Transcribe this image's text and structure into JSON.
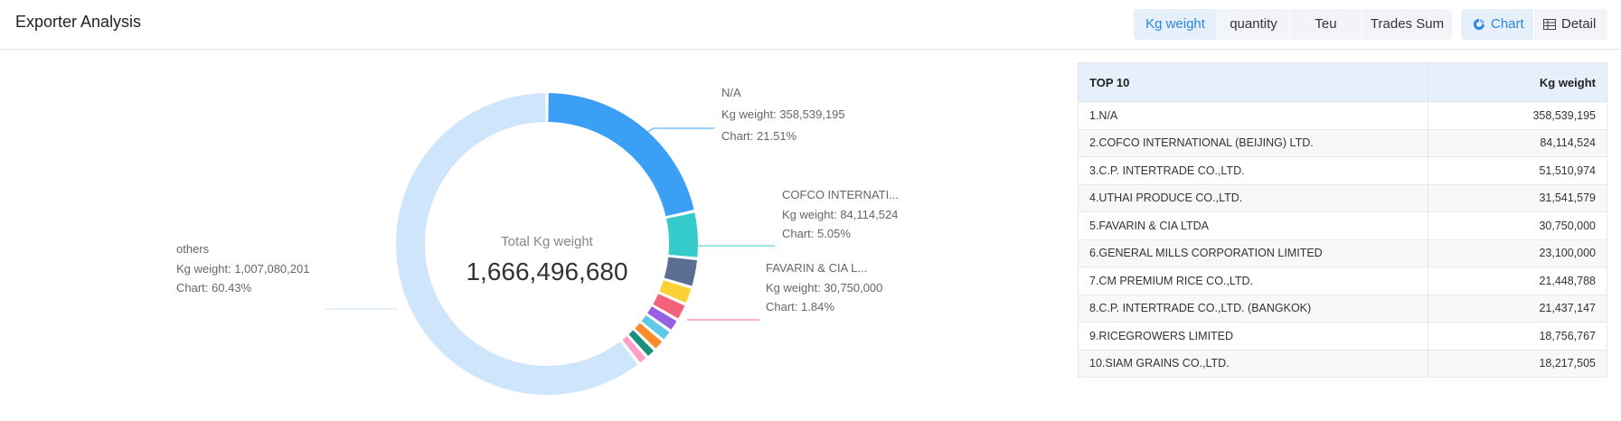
{
  "header": {
    "title": "Exporter Analysis",
    "metric_tabs": [
      "Kg weight",
      "quantity",
      "Teu",
      "Trades Sum"
    ],
    "active_metric": "Kg weight",
    "view_tabs": [
      {
        "label": "Chart",
        "icon": "donut-chart-icon"
      },
      {
        "label": "Detail",
        "icon": "table-icon"
      }
    ],
    "active_view": "Chart"
  },
  "donut": {
    "center_label": "Total Kg weight",
    "center_value": "1,666,496,680",
    "callouts": [
      {
        "name": "N/A",
        "metric": "Kg weight: 358,539,195",
        "pct": "Chart: 21.51%"
      },
      {
        "name": "COFCO INTERNATI...",
        "metric": "Kg weight: 84,114,524",
        "pct": "Chart: 5.05%"
      },
      {
        "name": "FAVARIN & CIA L...",
        "metric": "Kg weight: 30,750,000",
        "pct": "Chart: 1.84%"
      },
      {
        "name": "others",
        "metric": "Kg weight: 1,007,080,201",
        "pct": "Chart: 60.43%"
      }
    ]
  },
  "chart_data": {
    "type": "pie",
    "title": "Total Kg weight",
    "total": 1666496680,
    "unit": "Kg weight",
    "slices": [
      {
        "label": "N/A",
        "value": 358539195,
        "color": "#3a9ff5"
      },
      {
        "label": "COFCO INTERNATIONAL (BEIJING) LTD.",
        "value": 84114524,
        "color": "#36cbcb"
      },
      {
        "label": "C.P. INTERTRADE CO.,LTD.",
        "value": 51510974,
        "color": "#5c6e94"
      },
      {
        "label": "UTHAI PRODUCE CO.,LTD.",
        "value": 31541579,
        "color": "#fad235"
      },
      {
        "label": "FAVARIN & CIA LTDA",
        "value": 30750000,
        "color": "#f2637b"
      },
      {
        "label": "GENERAL MILLS CORPORATION LIMITED",
        "value": 23100000,
        "color": "#975fe4"
      },
      {
        "label": "CM PREMIUM RICE CO.,LTD.",
        "value": 21448788,
        "color": "#5ec9e6"
      },
      {
        "label": "C.P. INTERTRADE CO.,LTD. (BANGKOK)",
        "value": 21437147,
        "color": "#fa8c2c"
      },
      {
        "label": "RICEGROWERS LIMITED",
        "value": 18756767,
        "color": "#1a8f7a"
      },
      {
        "label": "SIAM GRAINS CO.,LTD.",
        "value": 18217505,
        "color": "#ff9ec6"
      },
      {
        "label": "others",
        "value": 1007080201,
        "color": "#cfe5fc"
      }
    ]
  },
  "table": {
    "headers": [
      "TOP 10",
      "Kg weight"
    ],
    "rows": [
      {
        "name": "1.N/A",
        "value": "358,539,195"
      },
      {
        "name": "2.COFCO INTERNATIONAL (BEIJING) LTD.",
        "value": "84,114,524"
      },
      {
        "name": "3.C.P. INTERTRADE CO.,LTD.",
        "value": "51,510,974"
      },
      {
        "name": "4.UTHAI PRODUCE CO.,LTD.",
        "value": "31,541,579"
      },
      {
        "name": "5.FAVARIN & CIA LTDA",
        "value": "30,750,000"
      },
      {
        "name": "6.GENERAL MILLS CORPORATION LIMITED",
        "value": "23,100,000"
      },
      {
        "name": "7.CM PREMIUM RICE CO.,LTD.",
        "value": "21,448,788"
      },
      {
        "name": "8.C.P. INTERTRADE CO.,LTD. (BANGKOK)",
        "value": "21,437,147"
      },
      {
        "name": "9.RICEGROWERS LIMITED",
        "value": "18,756,767"
      },
      {
        "name": "10.SIAM GRAINS CO.,LTD.",
        "value": "18,217,505"
      }
    ]
  }
}
